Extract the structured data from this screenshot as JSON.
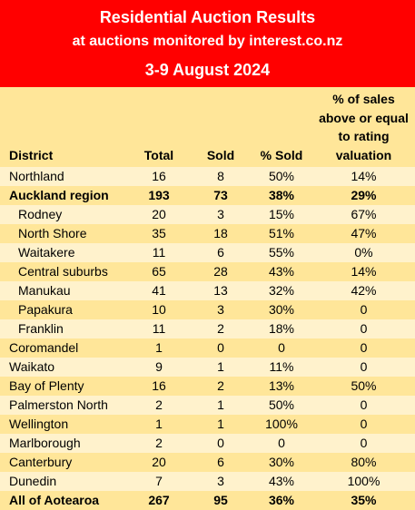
{
  "header": {
    "title": "Residential Auction Results",
    "subtitle": "at auctions monitored by interest.co.nz",
    "date_range": "3-9 August 2024"
  },
  "columns": {
    "district": "District",
    "total": "Total",
    "sold": "Sold",
    "pct_sold": "% Sold",
    "pct_above": "% of sales above or equal to rating valuation"
  },
  "rows": [
    {
      "district": "Northland",
      "total": "16",
      "sold": "8",
      "pct_sold": "50%",
      "pct_above": "14%"
    },
    {
      "district": "Auckland region",
      "total": "193",
      "sold": "73",
      "pct_sold": "38%",
      "pct_above": "29%"
    },
    {
      "district": "Rodney",
      "total": "20",
      "sold": "3",
      "pct_sold": "15%",
      "pct_above": "67%"
    },
    {
      "district": "North Shore",
      "total": "35",
      "sold": "18",
      "pct_sold": "51%",
      "pct_above": "47%"
    },
    {
      "district": "Waitakere",
      "total": "11",
      "sold": "6",
      "pct_sold": "55%",
      "pct_above": "0%"
    },
    {
      "district": "Central suburbs",
      "total": "65",
      "sold": "28",
      "pct_sold": "43%",
      "pct_above": "14%"
    },
    {
      "district": "Manukau",
      "total": "41",
      "sold": "13",
      "pct_sold": "32%",
      "pct_above": "42%"
    },
    {
      "district": "Papakura",
      "total": "10",
      "sold": "3",
      "pct_sold": "30%",
      "pct_above": "0"
    },
    {
      "district": "Franklin",
      "total": "11",
      "sold": "2",
      "pct_sold": "18%",
      "pct_above": "0"
    },
    {
      "district": "Coromandel",
      "total": "1",
      "sold": "0",
      "pct_sold": "0",
      "pct_above": "0"
    },
    {
      "district": "Waikato",
      "total": "9",
      "sold": "1",
      "pct_sold": "11%",
      "pct_above": "0"
    },
    {
      "district": "Bay of Plenty",
      "total": "16",
      "sold": "2",
      "pct_sold": "13%",
      "pct_above": "50%"
    },
    {
      "district": "Palmerston North",
      "total": "2",
      "sold": "1",
      "pct_sold": "50%",
      "pct_above": "0"
    },
    {
      "district": "Wellington",
      "total": "1",
      "sold": "1",
      "pct_sold": "100%",
      "pct_above": "0"
    },
    {
      "district": "Marlborough",
      "total": "2",
      "sold": "0",
      "pct_sold": "0",
      "pct_above": "0"
    },
    {
      "district": "Canterbury",
      "total": "20",
      "sold": "6",
      "pct_sold": "30%",
      "pct_above": "80%"
    },
    {
      "district": "Dunedin",
      "total": "7",
      "sold": "3",
      "pct_sold": "43%",
      "pct_above": "100%"
    },
    {
      "district": "All of Aotearoa",
      "total": "267",
      "sold": "95",
      "pct_sold": "36%",
      "pct_above": "35%"
    }
  ],
  "colors": {
    "header_bg": "#ff0000",
    "row_light": "#fff2cc",
    "row_dark": "#ffe699"
  }
}
